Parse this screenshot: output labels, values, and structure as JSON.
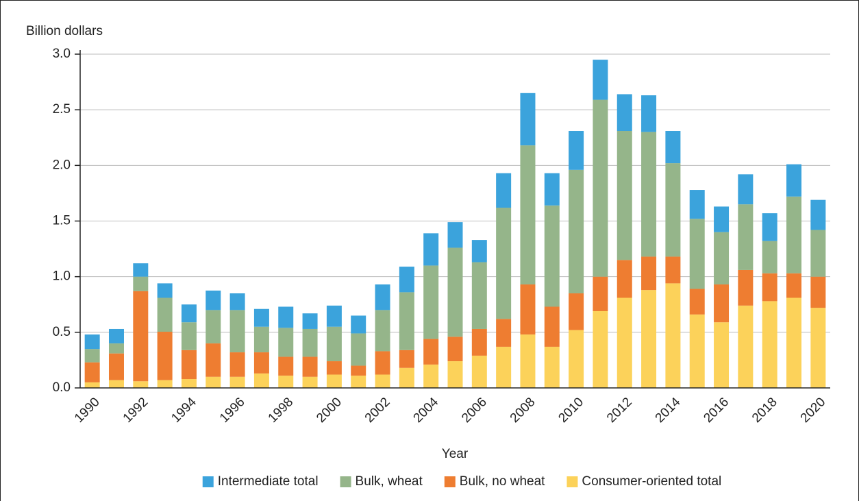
{
  "chart_data": {
    "type": "stacked-bar",
    "y_label": "Billion dollars",
    "x_label": "Year",
    "categories": [
      "1990",
      null,
      "1992",
      null,
      "1994",
      null,
      "1996",
      null,
      "1998",
      null,
      "2000",
      null,
      "2002",
      null,
      "2004",
      null,
      "2006",
      null,
      "2008",
      null,
      "2010",
      null,
      "2012",
      null,
      "2014",
      null,
      "2016",
      null,
      "2018",
      null,
      "2020"
    ],
    "series": [
      {
        "name": "Intermediate total",
        "color": "#3ba3dc",
        "values": [
          0.13,
          0.13,
          0.12,
          0.13,
          0.16,
          0.175,
          0.15,
          0.16,
          0.19,
          0.14,
          0.19,
          0.16,
          0.23,
          0.23,
          0.29,
          0.23,
          0.2,
          0.31,
          0.47,
          0.29,
          0.35,
          0.36,
          0.33,
          0.33,
          0.29,
          0.26,
          0.23,
          0.27,
          0.25,
          0.29,
          0.27
        ]
      },
      {
        "name": "Bulk, wheat",
        "color": "#95b58a",
        "values": [
          0.12,
          0.09,
          0.13,
          0.305,
          0.25,
          0.3,
          0.38,
          0.23,
          0.26,
          0.25,
          0.31,
          0.29,
          0.37,
          0.52,
          0.66,
          0.8,
          0.6,
          1.0,
          1.25,
          0.91,
          1.11,
          1.59,
          1.16,
          1.12,
          0.84,
          0.63,
          0.47,
          0.59,
          0.29,
          0.69,
          0.42
        ]
      },
      {
        "name": "Bulk, no wheat",
        "color": "#ee7d31",
        "values": [
          0.18,
          0.24,
          0.81,
          0.435,
          0.26,
          0.3,
          0.22,
          0.19,
          0.17,
          0.18,
          0.12,
          0.09,
          0.21,
          0.16,
          0.23,
          0.22,
          0.24,
          0.25,
          0.45,
          0.36,
          0.33,
          0.31,
          0.34,
          0.3,
          0.24,
          0.23,
          0.34,
          0.32,
          0.25,
          0.22,
          0.28
        ]
      },
      {
        "name": "Consumer-oriented total",
        "color": "#fcd25a",
        "values": [
          0.05,
          0.07,
          0.06,
          0.07,
          0.08,
          0.1,
          0.1,
          0.13,
          0.11,
          0.1,
          0.12,
          0.11,
          0.12,
          0.18,
          0.21,
          0.24,
          0.29,
          0.37,
          0.48,
          0.37,
          0.52,
          0.69,
          0.81,
          0.88,
          0.94,
          0.66,
          0.59,
          0.74,
          0.78,
          0.81,
          0.72
        ]
      }
    ],
    "ylim": [
      0,
      3
    ],
    "yticks": [
      {
        "value": 0,
        "label": "0.0"
      },
      0.5,
      {
        "value": 1,
        "label": "1.0"
      },
      1.5,
      {
        "value": 2,
        "label": "2.0"
      },
      2.5,
      {
        "value": 3,
        "label": "3.0"
      }
    ],
    "grid": true,
    "legend": "bottom"
  }
}
